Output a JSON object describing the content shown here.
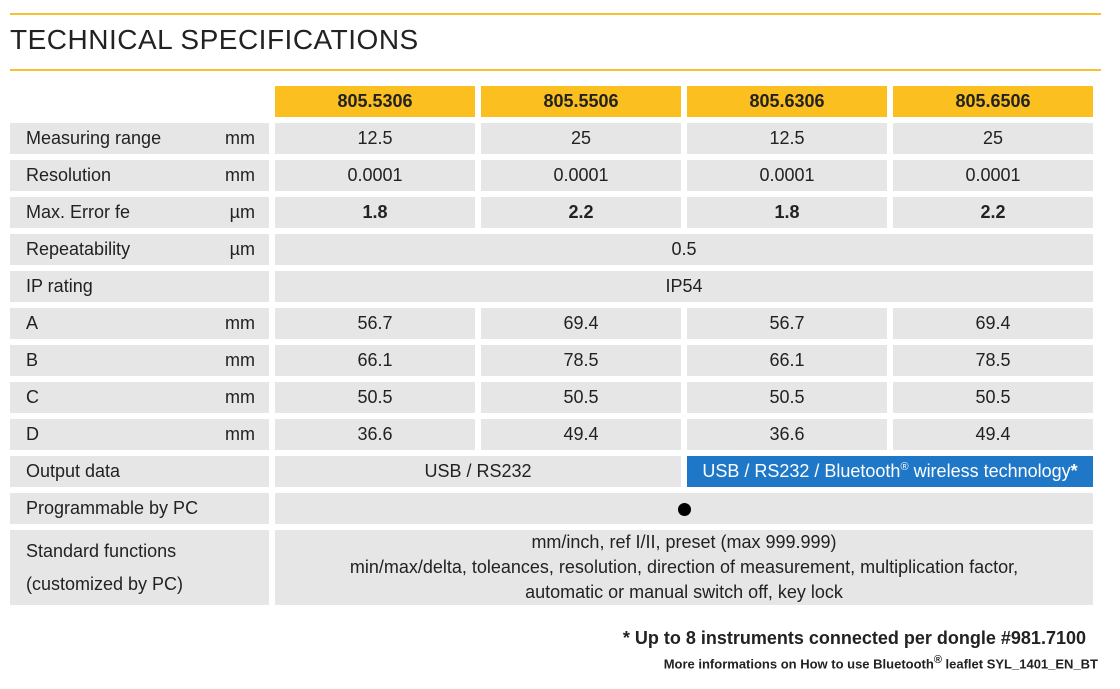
{
  "title": "TECHNICAL SPECIFICATIONS",
  "models": [
    "805.5306",
    "805.5506",
    "805.6306",
    "805.6506"
  ],
  "rows": [
    {
      "label": "Measuring range",
      "unit": "mm",
      "values": [
        "12.5",
        "25",
        "12.5",
        "25"
      ]
    },
    {
      "label": "Resolution",
      "unit": "mm",
      "values": [
        "0.0001",
        "0.0001",
        "0.0001",
        "0.0001"
      ]
    },
    {
      "label": "Max. Error fe",
      "unit": "µm",
      "values": [
        "1.8",
        "2.2",
        "1.8",
        "2.2"
      ]
    },
    {
      "label": "Repeatability",
      "unit": "µm",
      "value": "0.5"
    },
    {
      "label": "IP rating",
      "unit": "",
      "value": "IP54"
    },
    {
      "label": "A",
      "unit": "mm",
      "values": [
        "56.7",
        "69.4",
        "56.7",
        "69.4"
      ]
    },
    {
      "label": "B",
      "unit": "mm",
      "values": [
        "66.1",
        "78.5",
        "66.1",
        "78.5"
      ]
    },
    {
      "label": "C",
      "unit": "mm",
      "values": [
        "50.5",
        "50.5",
        "50.5",
        "50.5"
      ]
    },
    {
      "label": "D",
      "unit": "mm",
      "values": [
        "36.6",
        "49.4",
        "36.6",
        "49.4"
      ]
    }
  ],
  "output": {
    "label": "Output data",
    "left": "USB / RS232",
    "right_prefix": "USB / RS232 / Bluetooth",
    "right_reg": "®",
    "right_suffix": " wireless technology",
    "right_star": "*"
  },
  "programmable": {
    "label": "Programmable by PC"
  },
  "standard": {
    "label_line1": "Standard functions",
    "label_line2": "(customized by PC)",
    "line1": "mm/inch, ref I/II, preset (max 999.999)",
    "line2": "min/max/delta, toleances, resolution, direction of measurement, multiplication factor,",
    "line3": "automatic or manual switch off, key lock"
  },
  "footnote1": "* Up to 8 instruments connected per dongle #981.7100",
  "footnote2_prefix": "More informations on How to use Bluetooth",
  "footnote2_reg": "®",
  "footnote2_suffix": " leaflet SYL_1401_EN_BT",
  "colors": {
    "accent": "#fbc01f",
    "rule": "#f6c232",
    "cell": "#e6e6e6",
    "blue": "#1f77c7"
  }
}
